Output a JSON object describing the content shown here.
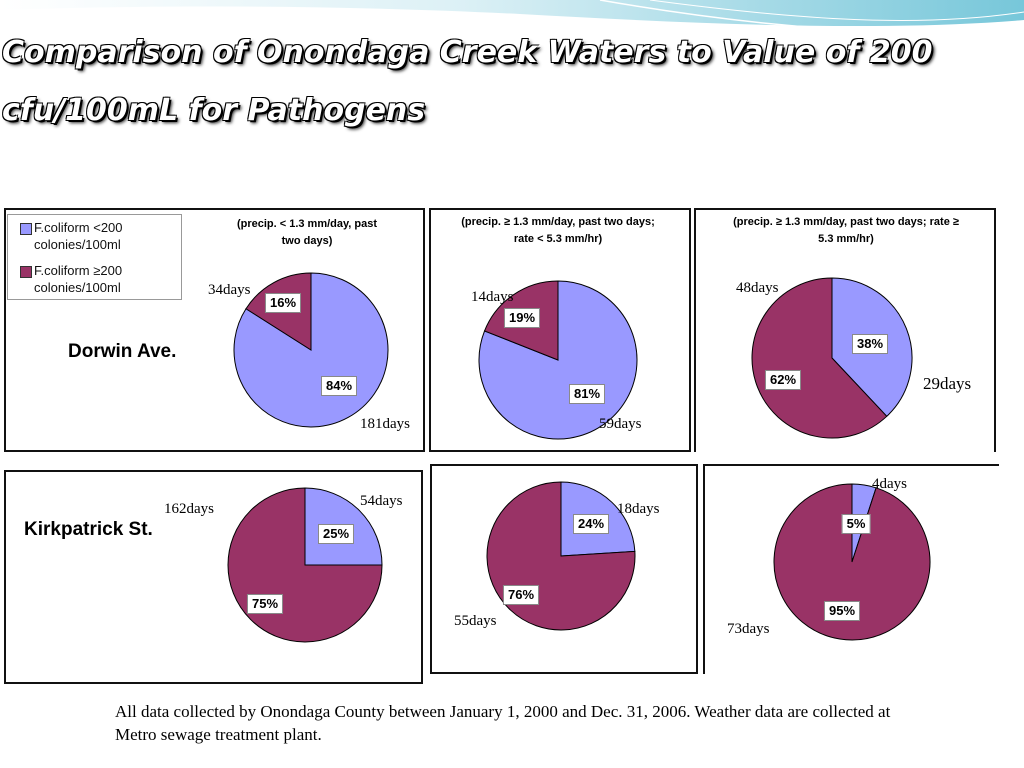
{
  "slide": {
    "title": "Comparison of Onondaga Creek Waters to Value of 200 cfu/100mL for Pathogens",
    "footer": "All data collected by Onondaga County between January 1, 2000 and Dec. 31, 2006. Weather data are collected at Metro sewage treatment plant."
  },
  "legend": {
    "items": [
      {
        "label": "F.coliform <200 colonies/100ml",
        "color": "#9999ff"
      },
      {
        "label": "F.coliform ≥200 colonies/100ml",
        "color": "#993366"
      }
    ]
  },
  "sites": {
    "dorwin": "Dorwin Ave.",
    "kirkpatrick": "Kirkpatrick St."
  },
  "conditions": [
    "(precip. < 1.3 mm/day, past two days)",
    "(precip. ≥ 1.3 mm/day, past two days; rate < 5.3 mm/hr)",
    "(precip. ≥ 1.3 mm/day, past two days; rate ≥ 5.3 mm/hr)"
  ],
  "chart_data": [
    {
      "type": "pie",
      "site": "Dorwin Ave.",
      "condition": "(precip. < 1.3 mm/day, past two days)",
      "slices": [
        {
          "label": "F.coliform <200 colonies/100ml",
          "value": 84,
          "pct": "84%",
          "days": "181days"
        },
        {
          "label": "F.coliform ≥200 colonies/100ml",
          "value": 16,
          "pct": "16%",
          "days": "34days"
        }
      ]
    },
    {
      "type": "pie",
      "site": "Dorwin Ave.",
      "condition": "(precip. ≥ 1.3 mm/day, past two days; rate < 5.3 mm/hr)",
      "slices": [
        {
          "label": "F.coliform <200 colonies/100ml",
          "value": 81,
          "pct": "81%",
          "days": "59days"
        },
        {
          "label": "F.coliform ≥200 colonies/100ml",
          "value": 19,
          "pct": "19%",
          "days": "14days"
        }
      ]
    },
    {
      "type": "pie",
      "site": "Dorwin Ave.",
      "condition": "(precip. ≥ 1.3 mm/day, past two days; rate ≥ 5.3 mm/hr)",
      "slices": [
        {
          "label": "F.coliform <200 colonies/100ml",
          "value": 38,
          "pct": "38%",
          "days": "29days"
        },
        {
          "label": "F.coliform ≥200 colonies/100ml",
          "value": 62,
          "pct": "62%",
          "days": "48days"
        }
      ]
    },
    {
      "type": "pie",
      "site": "Kirkpatrick St.",
      "condition": "(precip. < 1.3 mm/day, past two days)",
      "slices": [
        {
          "label": "F.coliform <200 colonies/100ml",
          "value": 25,
          "pct": "25%",
          "days": "54days"
        },
        {
          "label": "F.coliform ≥200 colonies/100ml",
          "value": 75,
          "pct": "75%",
          "days": "162days"
        }
      ]
    },
    {
      "type": "pie",
      "site": "Kirkpatrick St.",
      "condition": "(precip. ≥ 1.3 mm/day, past two days; rate < 5.3 mm/hr)",
      "slices": [
        {
          "label": "F.coliform <200 colonies/100ml",
          "value": 24,
          "pct": "24%",
          "days": "18days"
        },
        {
          "label": "F.coliform ≥200 colonies/100ml",
          "value": 76,
          "pct": "76%",
          "days": "55days"
        }
      ]
    },
    {
      "type": "pie",
      "site": "Kirkpatrick St.",
      "condition": "(precip. ≥ 1.3 mm/day, past two days; rate ≥ 5.3 mm/hr)",
      "slices": [
        {
          "label": "F.coliform <200 colonies/100ml",
          "value": 5,
          "pct": "5%",
          "days": "4days"
        },
        {
          "label": "F.coliform ≥200 colonies/100ml",
          "value": 95,
          "pct": "95%",
          "days": "73days"
        }
      ]
    }
  ]
}
